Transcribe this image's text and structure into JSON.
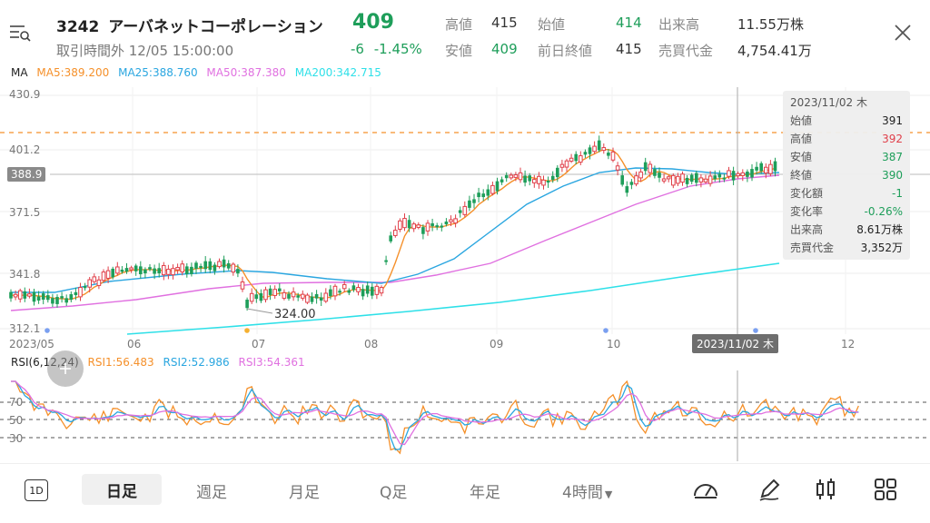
{
  "header": {
    "code": "3242",
    "name": "アーバネットコーポレーション",
    "price": "409",
    "session": "取引時間外 12/05 15:00:00",
    "change": "-6",
    "change_pct": "-1.45%",
    "stats": [
      {
        "label": "高値",
        "value": "415"
      },
      {
        "label": "始値",
        "value": "414"
      },
      {
        "label": "出来高",
        "value": "11.55万株"
      },
      {
        "label": "安値",
        "value": "409"
      },
      {
        "label": "前日終値",
        "value": "415"
      },
      {
        "label": "売買代金",
        "value": "4,754.41万"
      }
    ]
  },
  "ma_legend": {
    "title": "MA",
    "items": [
      {
        "text": "MA5:389.200",
        "color": "#f5902a"
      },
      {
        "text": "MA25:388.760",
        "color": "#2aa6e0"
      },
      {
        "text": "MA50:387.380",
        "color": "#e070e0"
      },
      {
        "text": "MA200:342.715",
        "color": "#2ee0e8"
      }
    ]
  },
  "price_axis": {
    "labels": [
      "430.9",
      "401.2",
      "371.5",
      "341.8",
      "312.1"
    ],
    "current": "388.9"
  },
  "min_label": "324.00",
  "x_axis": [
    "2023/05",
    "06",
    "07",
    "08",
    "09",
    "10",
    "12"
  ],
  "crosshair_date": "2023/11/02 木",
  "tooltip": {
    "date": "2023/11/02 木",
    "rows": [
      {
        "label": "始値",
        "value": "391",
        "color": "#222222"
      },
      {
        "label": "高値",
        "value": "392",
        "color": "#e0404a"
      },
      {
        "label": "安値",
        "value": "387",
        "color": "#1e9e5a"
      },
      {
        "label": "終値",
        "value": "390",
        "color": "#1e9e5a"
      },
      {
        "label": "変化額",
        "value": "-1",
        "color": "#1e9e5a"
      },
      {
        "label": "変化率",
        "value": "-0.26%",
        "color": "#1e9e5a"
      },
      {
        "label": "出来高",
        "value": "8.61万株",
        "color": "#222222"
      },
      {
        "label": "売買代金",
        "value": "3,352万",
        "color": "#222222"
      }
    ]
  },
  "rsi_legend": {
    "title": "RSI(6,12,24)",
    "items": [
      {
        "text": "RSI1:56.483",
        "color": "#f5902a"
      },
      {
        "text": "RSI2:52.986",
        "color": "#2aa6e0"
      },
      {
        "text": "RSI3:54.361",
        "color": "#e070e0"
      }
    ]
  },
  "rsi_axis": [
    "70",
    "50",
    "30"
  ],
  "bottom_bar": {
    "period_button": "1D",
    "tabs": [
      "日足",
      "週足",
      "月足",
      "Q足",
      "年足",
      "4時間"
    ],
    "active": 0
  },
  "colors": {
    "up": "#e0404a",
    "down": "#1e9e5a",
    "accent_green": "#1e9e5a"
  }
}
